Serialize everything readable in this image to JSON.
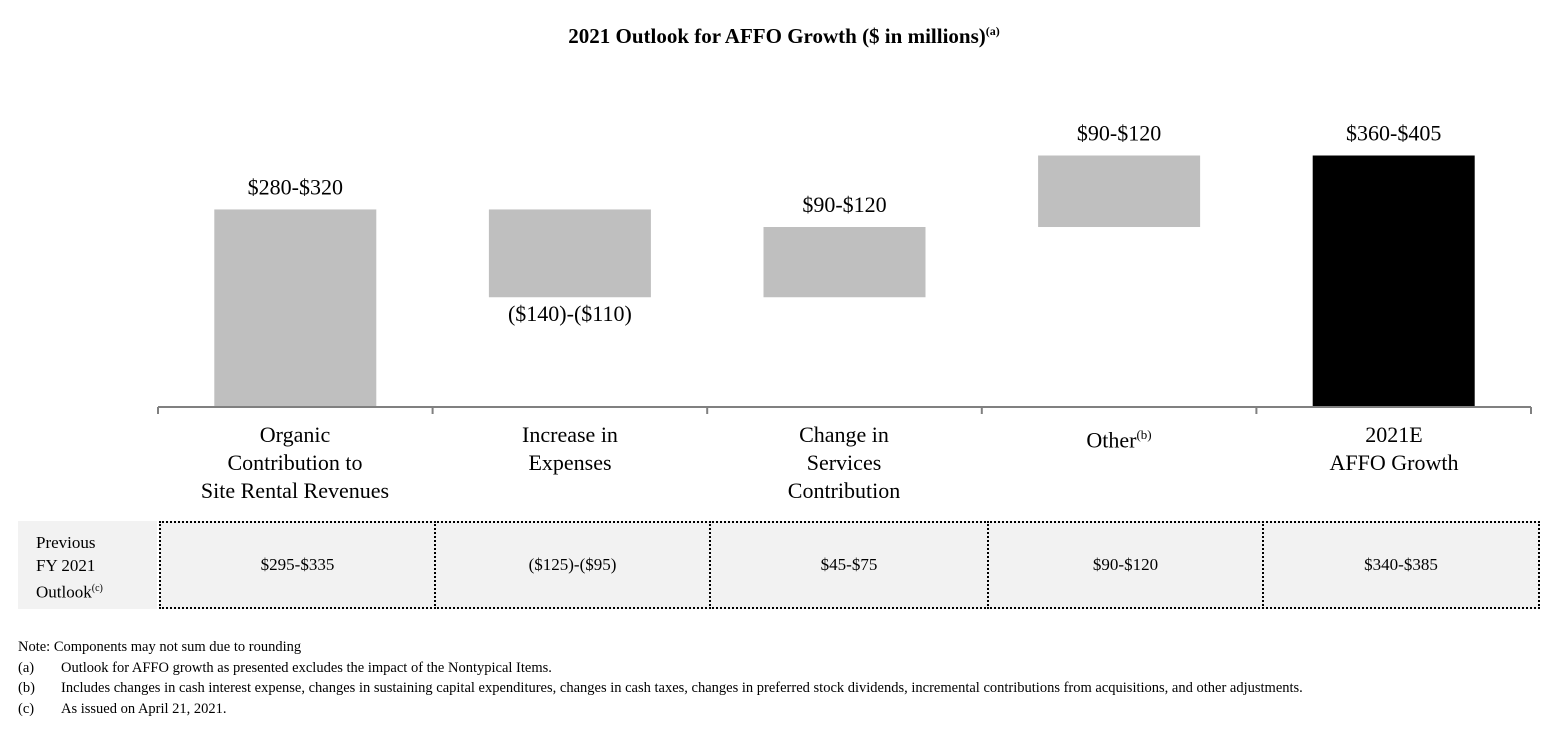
{
  "title": {
    "text": "2021 Outlook for AFFO Growth ($ in millions)",
    "superscript": "(a)"
  },
  "chart_data": {
    "type": "waterfall",
    "title": "2021 Outlook for AFFO Growth ($ in millions)",
    "ylabel": "$ in millions",
    "ylim": [
      0,
      405
    ],
    "categories": [
      {
        "lines": [
          "Organic",
          "Contribution to",
          "Site Rental Revenues"
        ],
        "superscript": ""
      },
      {
        "lines": [
          "Increase in",
          "Expenses"
        ],
        "superscript": ""
      },
      {
        "lines": [
          "Change in",
          "Services",
          "Contribution"
        ],
        "superscript": ""
      },
      {
        "lines": [
          "Other"
        ],
        "superscript": "(b)"
      },
      {
        "lines": [
          "2021E",
          "AFFO Growth"
        ],
        "superscript": ""
      }
    ],
    "bars": [
      {
        "start": 0,
        "end": 315,
        "label": "$280-$320",
        "label_position": "top",
        "kind": "increase"
      },
      {
        "start": 315,
        "end": 175,
        "label": "($140)-($110)",
        "label_position": "bottom",
        "kind": "decrease"
      },
      {
        "start": 175,
        "end": 287,
        "label": "$90-$120",
        "label_position": "top",
        "kind": "increase"
      },
      {
        "start": 287,
        "end": 401,
        "label": "$90-$120",
        "label_position": "top",
        "kind": "increase"
      },
      {
        "start": 0,
        "end": 401,
        "label": "$360-$405",
        "label_position": "top",
        "kind": "total"
      }
    ],
    "colors": {
      "component": "#bfbfbf",
      "total": "#000000",
      "axis": "#808080"
    }
  },
  "previous_outlook": {
    "label_lines": [
      "Previous",
      "FY 2021",
      "Outlook"
    ],
    "label_superscript": "(c)",
    "values": [
      "$295-$335",
      "($125)-($95)",
      "$45-$75",
      "$90-$120",
      "$340-$385"
    ]
  },
  "notes": {
    "note": "Note: Components may not sum due to rounding",
    "footnotes": [
      {
        "key": "(a)",
        "text": "Outlook for AFFO growth as presented excludes the impact of the Nontypical Items."
      },
      {
        "key": "(b)",
        "text": "Includes changes in cash interest expense, changes in sustaining capital expenditures, changes in cash taxes, changes in preferred stock dividends, incremental contributions from acquisitions, and other adjustments."
      },
      {
        "key": "(c)",
        "text": "As issued on April 21, 2021."
      }
    ]
  }
}
